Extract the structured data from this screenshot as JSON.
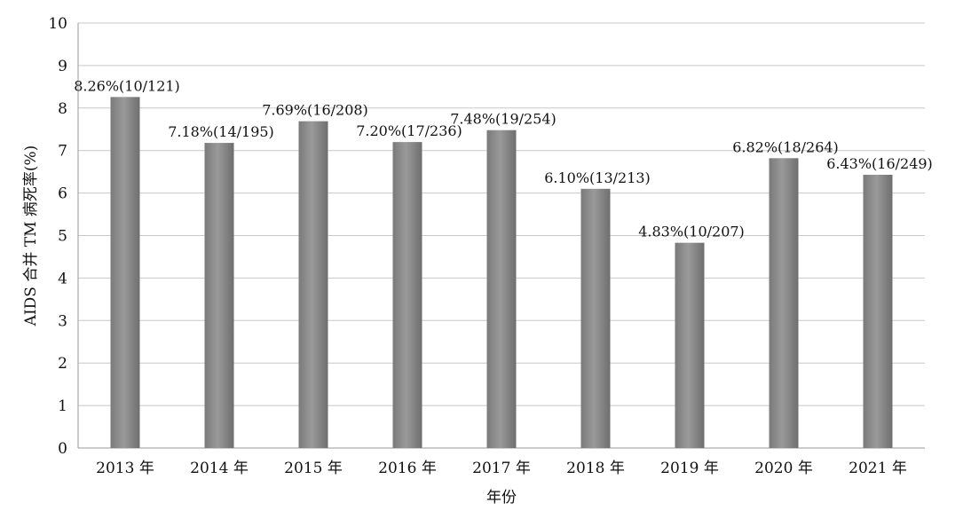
{
  "chart_data": {
    "type": "bar",
    "categories": [
      "2013 年",
      "2014 年",
      "2015 年",
      "2016 年",
      "2017 年",
      "2018 年",
      "2019 年",
      "2020 年",
      "2021 年"
    ],
    "values": [
      8.26,
      7.18,
      7.69,
      7.2,
      7.48,
      6.1,
      4.83,
      6.82,
      6.43
    ],
    "data_labels": [
      "8.26%(10/121)",
      "7.18%(14/195)",
      "7.69%(16/208)",
      "7.20%(17/236)",
      "7.48%(19/254)",
      "6.10%(13/213)",
      "4.83%(10/207)",
      "6.82%(18/264)",
      "6.43%(16/249)"
    ],
    "xlabel": "年份",
    "ylabel": "AIDS 合并 TM 病死率(%)",
    "ylim": [
      0,
      10
    ],
    "yticks": [
      0,
      1,
      2,
      3,
      4,
      5,
      6,
      7,
      8,
      9,
      10
    ],
    "grid": true,
    "bar_color": "#8a8a8a"
  }
}
